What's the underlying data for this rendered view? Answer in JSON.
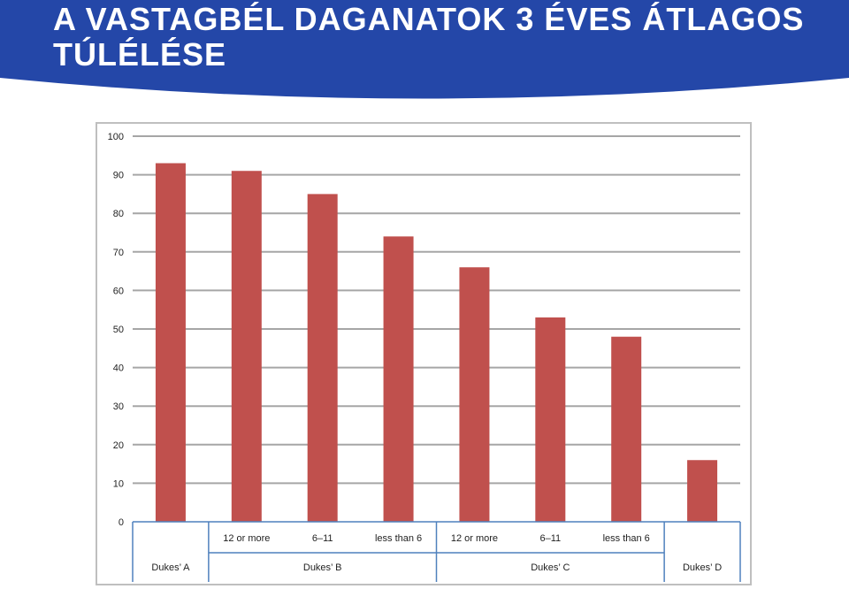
{
  "slide": {
    "title": "A VASTAGBÉL DAGANATOK 3 ÉVES ÁTLAGOS TÚLÉLÉSE"
  },
  "colors": {
    "banner": "#2447a8",
    "bar": "#c0504d",
    "grid": "#a6a6a6",
    "axis_table": "#4f81bd"
  },
  "chart_data": {
    "type": "bar",
    "title": "",
    "xlabel": "",
    "ylabel": "",
    "ylim": [
      0,
      100
    ],
    "yticks": [
      0,
      10,
      20,
      30,
      40,
      50,
      60,
      70,
      80,
      90,
      100
    ],
    "grid": true,
    "legend": "none",
    "groups": [
      {
        "name": "Dukes’ A",
        "subcategories": [
          ""
        ]
      },
      {
        "name": "Dukes’ B",
        "subcategories": [
          "12 or more",
          "6–11",
          "less than 6"
        ]
      },
      {
        "name": "Dukes’ C",
        "subcategories": [
          "12 or more",
          "6–11",
          "less than 6"
        ]
      },
      {
        "name": "Dukes’ D",
        "subcategories": [
          ""
        ]
      }
    ],
    "values": [
      93,
      91,
      85,
      74,
      66,
      53,
      48,
      16
    ]
  }
}
